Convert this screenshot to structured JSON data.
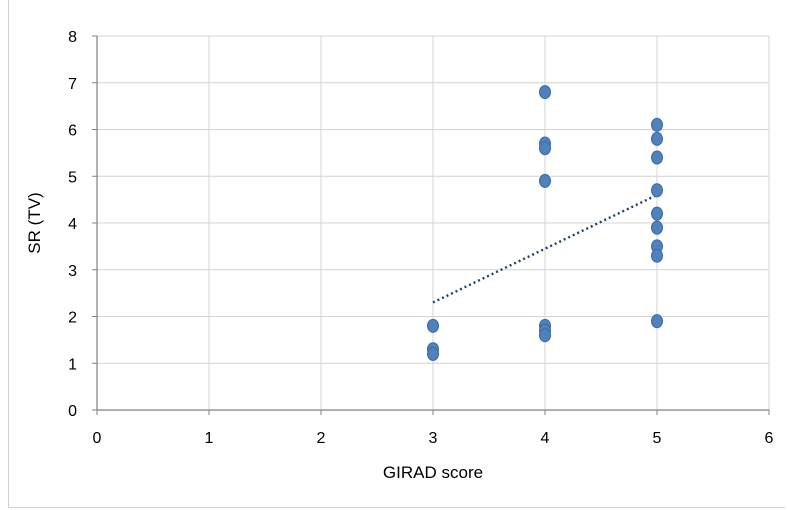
{
  "chart_data": {
    "type": "scatter",
    "title": "",
    "xlabel": "GIRAD score",
    "ylabel": "SR (TV)",
    "xlim": [
      0,
      6
    ],
    "ylim": [
      0,
      8
    ],
    "x_ticks": [
      "0",
      "1",
      "2",
      "3",
      "4",
      "5",
      "6"
    ],
    "y_ticks": [
      "0",
      "1",
      "2",
      "3",
      "4",
      "5",
      "6",
      "7",
      "8"
    ],
    "grid": true,
    "legend": "none",
    "series": [
      {
        "points": [
          {
            "x": 3,
            "y": 1.8
          },
          {
            "x": 3,
            "y": 1.3
          },
          {
            "x": 3,
            "y": 1.2
          },
          {
            "x": 4,
            "y": 6.8
          },
          {
            "x": 4,
            "y": 5.7
          },
          {
            "x": 4,
            "y": 5.6
          },
          {
            "x": 4,
            "y": 4.9
          },
          {
            "x": 4,
            "y": 1.8
          },
          {
            "x": 4,
            "y": 1.7
          },
          {
            "x": 4,
            "y": 1.6
          },
          {
            "x": 5,
            "y": 6.1
          },
          {
            "x": 5,
            "y": 5.8
          },
          {
            "x": 5,
            "y": 5.4
          },
          {
            "x": 5,
            "y": 4.7
          },
          {
            "x": 5,
            "y": 4.2
          },
          {
            "x": 5,
            "y": 3.9
          },
          {
            "x": 5,
            "y": 3.5
          },
          {
            "x": 5,
            "y": 3.3
          },
          {
            "x": 5,
            "y": 1.9
          }
        ]
      }
    ],
    "trendline": {
      "type": "linear",
      "x": [
        3,
        5
      ],
      "y": [
        2.3,
        4.6
      ],
      "style": "dotted"
    },
    "colors": {
      "marker": "#4f81bd",
      "marker_edge": "#3a6aa3",
      "trendline": "#1f3f6f",
      "grid": "#d4d4d4",
      "axis": "#808080"
    }
  }
}
